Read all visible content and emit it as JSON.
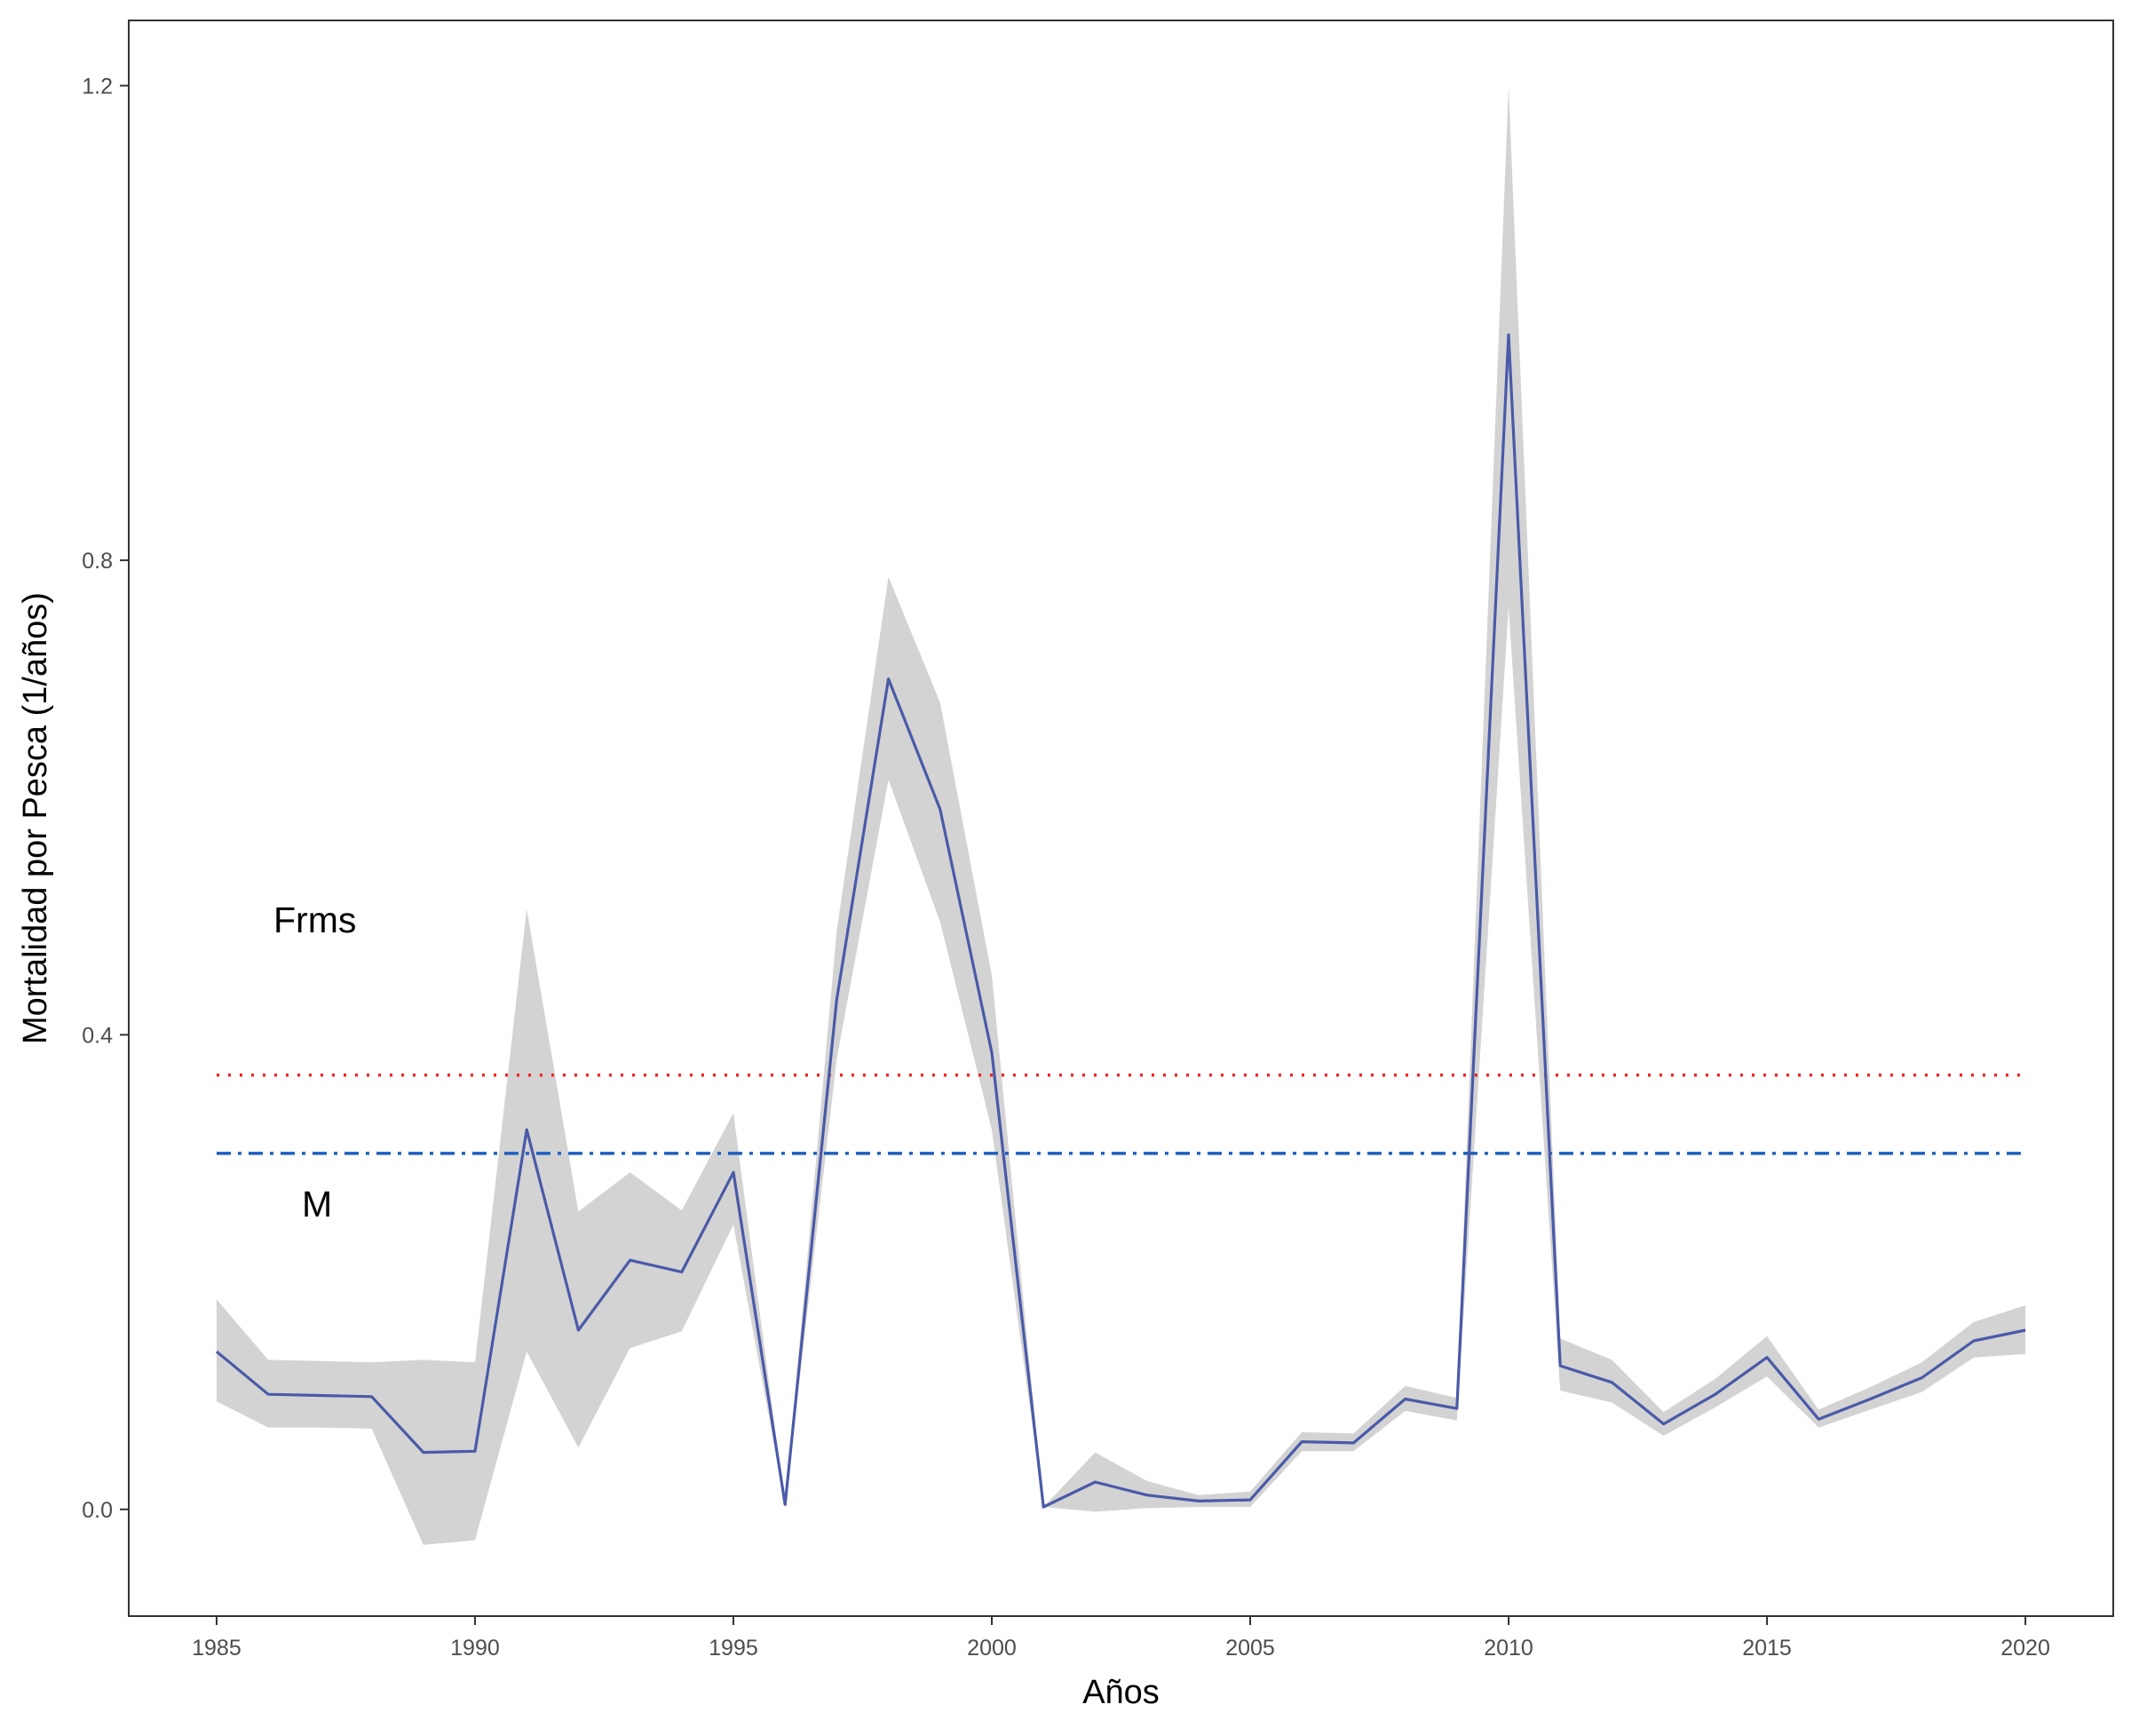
{
  "chart_data": {
    "type": "line",
    "title": "",
    "xlabel": "Años",
    "ylabel": "Mortalidad por Pesca (1/años)",
    "xlim": [
      1983.3,
      2021.7
    ],
    "ylim": [
      -0.09,
      1.255
    ],
    "x_ticks": [
      1985,
      1990,
      1995,
      2000,
      2005,
      2010,
      2015,
      2020
    ],
    "y_ticks": [
      0.0,
      0.4,
      0.8,
      1.2
    ],
    "x_tick_labels": [
      "1985",
      "1990",
      "1995",
      "2000",
      "2005",
      "2010",
      "2015",
      "2020"
    ],
    "y_tick_labels": [
      "0.0",
      "0.4",
      "0.8",
      "1.2"
    ],
    "grid": false,
    "x": [
      1985,
      1986,
      1987,
      1988,
      1989,
      1990,
      1991,
      1992,
      1993,
      1994,
      1995,
      1996,
      1997,
      1998,
      1999,
      2000,
      2001,
      2002,
      2003,
      2004,
      2005,
      2006,
      2007,
      2008,
      2009,
      2010,
      2011,
      2012,
      2013,
      2014,
      2015,
      2016,
      2017,
      2018,
      2019,
      2020
    ],
    "series": [
      {
        "values": [
          0.133,
          0.097,
          0.096,
          0.095,
          0.048,
          0.049,
          0.32,
          0.151,
          0.21,
          0.2,
          0.284,
          0.004,
          0.43,
          0.7,
          0.59,
          0.385,
          0.002,
          0.023,
          0.012,
          0.007,
          0.008,
          0.057,
          0.056,
          0.093,
          0.085,
          0.99,
          0.121,
          0.107,
          0.072,
          0.097,
          0.128,
          0.076,
          0.093,
          0.111,
          0.142,
          0.151
        ],
        "lower": [
          0.091,
          0.069,
          0.069,
          0.068,
          -0.03,
          -0.026,
          0.133,
          0.052,
          0.136,
          0.15,
          0.24,
          0.004,
          0.38,
          0.615,
          0.495,
          0.32,
          0.002,
          -0.002,
          0.001,
          0.002,
          0.002,
          0.049,
          0.049,
          0.083,
          0.075,
          0.76,
          0.1,
          0.09,
          0.062,
          0.086,
          0.112,
          0.069,
          0.084,
          0.099,
          0.128,
          0.131
        ],
        "upper": [
          0.177,
          0.126,
          0.125,
          0.124,
          0.126,
          0.124,
          0.506,
          0.251,
          0.284,
          0.252,
          0.334,
          0.004,
          0.488,
          0.786,
          0.68,
          0.45,
          0.002,
          0.048,
          0.024,
          0.012,
          0.015,
          0.065,
          0.064,
          0.104,
          0.094,
          1.2,
          0.144,
          0.126,
          0.082,
          0.11,
          0.146,
          0.084,
          0.103,
          0.124,
          0.158,
          0.172
        ]
      }
    ],
    "reference_lines": [
      {
        "label": "Frms",
        "value": 0.366,
        "style": "dotted",
        "color": "#ee2222"
      },
      {
        "label": "M",
        "value": 0.3,
        "style": "dashdot",
        "color": "#1f5fbf"
      }
    ],
    "colors": {
      "line": "#4a5aa8",
      "ribbon": "#d3d3d3",
      "frame": "#333333",
      "tick_text": "#4d4d4d"
    }
  }
}
